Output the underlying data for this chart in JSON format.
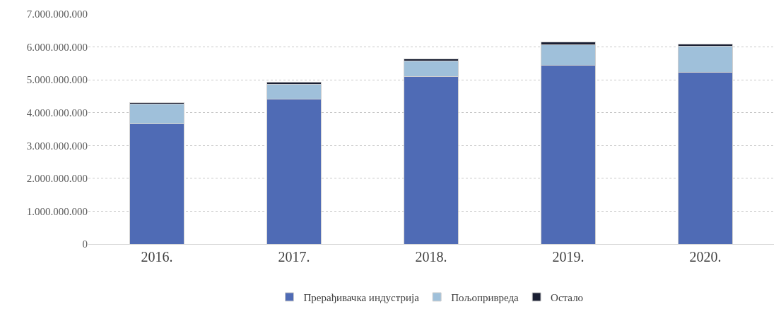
{
  "chart_data": {
    "type": "bar",
    "stacked": true,
    "categories": [
      "2016.",
      "2017.",
      "2018.",
      "2019.",
      "2020."
    ],
    "series": [
      {
        "name": "Прерађивачка индустрија",
        "color": "#4f6bb5",
        "values": [
          3670000000,
          4410000000,
          5090000000,
          5440000000,
          5230000000
        ]
      },
      {
        "name": "Пољопривреда",
        "color": "#9fc0da",
        "values": [
          590000000,
          450000000,
          490000000,
          630000000,
          790000000
        ]
      },
      {
        "name": "Остало",
        "color": "#1a1f33",
        "values": [
          40000000,
          70000000,
          60000000,
          80000000,
          60000000
        ]
      }
    ],
    "ylim": [
      0,
      7000000000
    ],
    "yticks": [
      {
        "value": 0,
        "label": "0"
      },
      {
        "value": 1000000000,
        "label": "1.000.000.000"
      },
      {
        "value": 2000000000,
        "label": "2.000.000.000"
      },
      {
        "value": 3000000000,
        "label": "3.000.000.000"
      },
      {
        "value": 4000000000,
        "label": "4.000.000.000"
      },
      {
        "value": 5000000000,
        "label": "5.000.000.000"
      },
      {
        "value": 6000000000,
        "label": "6.000.000.000"
      },
      {
        "value": 7000000000,
        "label": "7.000.000.000"
      }
    ],
    "grid": "y",
    "legend": "bottom"
  }
}
